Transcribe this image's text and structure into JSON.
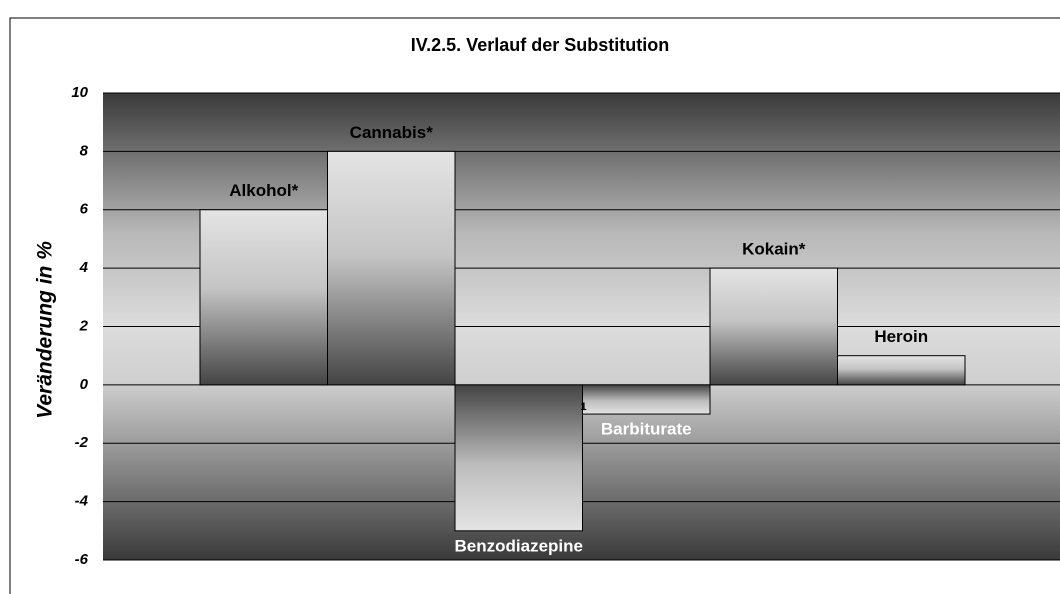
{
  "chart_data": {
    "type": "bar",
    "title": "IV.2.5. Verlauf der Substitution",
    "y_label": "Veränderung in %",
    "categories": [
      "Alkohol*",
      "Cannabis*",
      "Benzodiazepine",
      "Barbiturate",
      "Kokain*",
      "Heroin"
    ],
    "values": [
      6,
      8,
      -5,
      -1,
      4,
      1
    ],
    "annotations": [
      "1"
    ],
    "ylim": [
      -6,
      10
    ],
    "yticks": [
      -6,
      -4,
      -2,
      0,
      2,
      4,
      6,
      8,
      10
    ],
    "grid": true
  }
}
